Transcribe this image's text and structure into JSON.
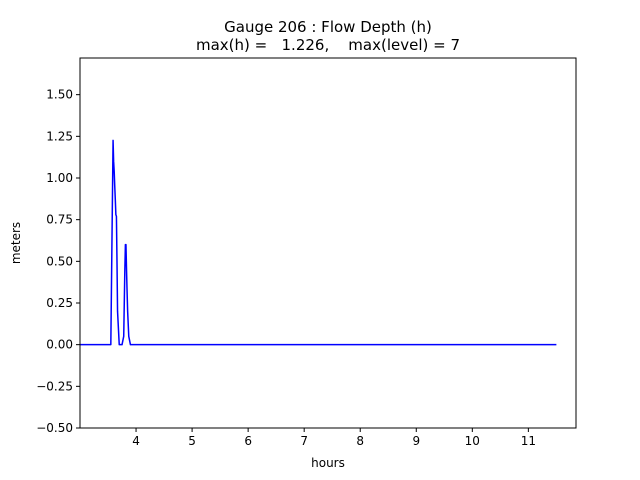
{
  "chart_data": {
    "type": "line",
    "title": "Gauge 206 : Flow Depth (h)",
    "subtitle": "max(h) =   1.226,    max(level) = 7",
    "xlabel": "hours",
    "ylabel": "meters",
    "xlim": [
      3.0,
      11.85
    ],
    "ylim": [
      -0.5,
      1.72
    ],
    "xticks": [
      4,
      5,
      6,
      7,
      8,
      9,
      10,
      11
    ],
    "yticks": [
      -0.5,
      -0.25,
      0.0,
      0.25,
      0.5,
      0.75,
      1.0,
      1.25,
      1.5
    ],
    "ytick_labels": [
      "−0.50",
      "−0.25",
      "0.00",
      "0.25",
      "0.50",
      "0.75",
      "1.00",
      "1.25",
      "1.50"
    ],
    "grid": false,
    "series": [
      {
        "color": "#0000ff",
        "x": [
          3.0,
          3.55,
          3.59,
          3.6,
          3.61,
          3.62,
          3.63,
          3.64,
          3.65,
          3.66,
          3.67,
          3.7,
          3.75,
          3.78,
          3.8,
          3.81,
          3.82,
          3.83,
          3.84,
          3.85,
          3.87,
          3.9,
          4.0,
          11.5
        ],
        "y": [
          0.0,
          0.0,
          1.226,
          1.1,
          1.04,
          0.95,
          0.87,
          0.78,
          0.77,
          0.5,
          0.2,
          0.0,
          0.0,
          0.05,
          0.45,
          0.6,
          0.6,
          0.45,
          0.32,
          0.2,
          0.05,
          0.0,
          0.0,
          0.0
        ]
      }
    ]
  }
}
